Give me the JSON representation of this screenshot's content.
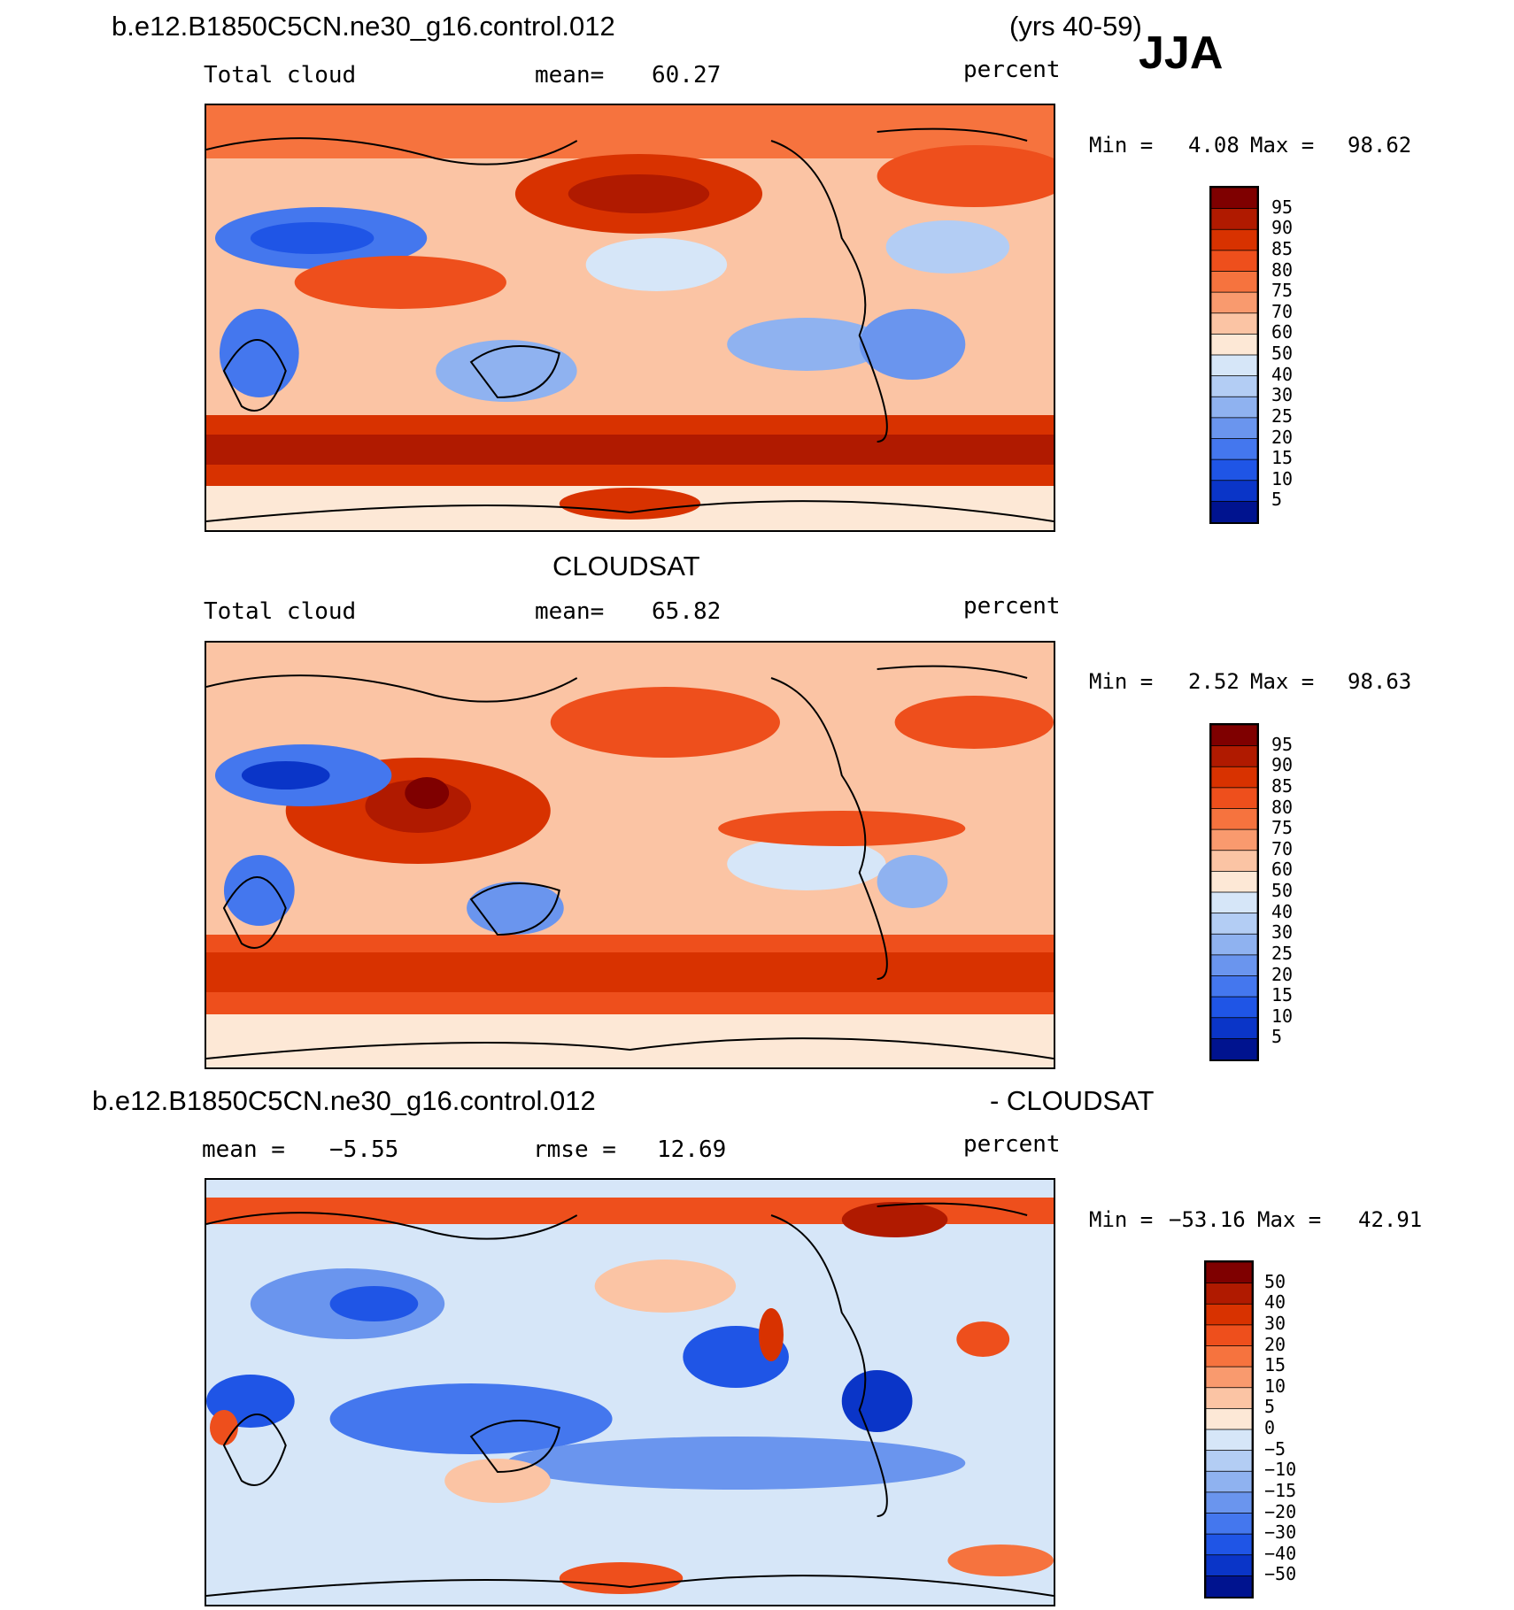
{
  "header": {
    "case_name": "b.e12.B1850C5CN.ne30_g16.control.012",
    "years": "(yrs 40-59)",
    "season": "JJA"
  },
  "panel1": {
    "field": "Total cloud",
    "mean_text": "mean=",
    "mean_value": "60.27",
    "units": "percent",
    "min_label": "Min =",
    "min_value": "4.08",
    "max_label": "Max =",
    "max_value": "98.62"
  },
  "panel2": {
    "title": "CLOUDSAT",
    "field": "Total cloud",
    "mean_text": "mean=",
    "mean_value": "65.82",
    "units": "percent",
    "min_label": "Min =",
    "min_value": "2.52",
    "max_label": "Max =",
    "max_value": "98.63"
  },
  "panel3": {
    "title_left": "b.e12.B1850C5CN.ne30_g16.control.012",
    "title_right": "- CLOUDSAT",
    "mean_text": "mean =",
    "mean_value": "−5.55",
    "rmse_text": "rmse =",
    "rmse_value": "12.69",
    "units": "percent",
    "min_label": "Min =",
    "min_value": "−53.16",
    "max_label": "Max =",
    "max_value": "42.91"
  },
  "colorbar_abs": {
    "labels": [
      "95",
      "90",
      "85",
      "80",
      "75",
      "70",
      "60",
      "50",
      "40",
      "30",
      "25",
      "20",
      "15",
      "10",
      "5"
    ],
    "colors": [
      "#7f0000",
      "#b01a00",
      "#d83200",
      "#ee4f1c",
      "#f6733e",
      "#f99a6e",
      "#fbc4a4",
      "#fde8d6",
      "#d6e6f8",
      "#b3cdf4",
      "#8fb2f0",
      "#6a95ee",
      "#4477ee",
      "#1f55e6",
      "#0a35c8",
      "#00138f"
    ]
  },
  "colorbar_diff": {
    "labels": [
      "50",
      "40",
      "30",
      "20",
      "15",
      "10",
      "5",
      "0",
      "−5",
      "−10",
      "−15",
      "−20",
      "−30",
      "−40",
      "−50"
    ],
    "colors": [
      "#7f0000",
      "#b01a00",
      "#d83200",
      "#ee4f1c",
      "#f6733e",
      "#f99a6e",
      "#fbc4a4",
      "#fde8d6",
      "#d6e6f8",
      "#b3cdf4",
      "#8fb2f0",
      "#6a95ee",
      "#4477ee",
      "#1f55e6",
      "#0a35c8",
      "#00138f"
    ]
  }
}
